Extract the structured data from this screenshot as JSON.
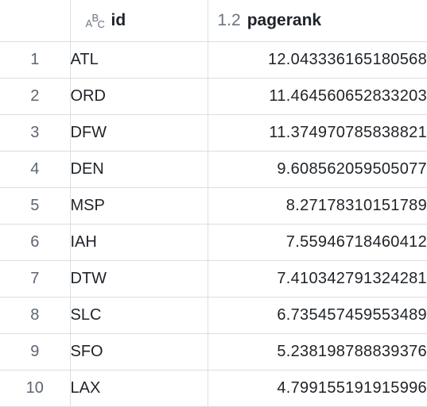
{
  "columns": {
    "index_header": "",
    "id": {
      "type_icon": "string-type-icon",
      "type_label": "ABC",
      "name": "id"
    },
    "pagerank": {
      "type_icon": "number-type-icon",
      "type_label": "1.2",
      "name": "pagerank"
    }
  },
  "rows": [
    {
      "index": "1",
      "id": "ATL",
      "pagerank": "12.043336165180568"
    },
    {
      "index": "2",
      "id": "ORD",
      "pagerank": "11.464560652833203"
    },
    {
      "index": "3",
      "id": "DFW",
      "pagerank": "11.374970785838821"
    },
    {
      "index": "4",
      "id": "DEN",
      "pagerank": "9.608562059505077"
    },
    {
      "index": "5",
      "id": "MSP",
      "pagerank": "8.27178310151789"
    },
    {
      "index": "6",
      "id": "IAH",
      "pagerank": "7.55946718460412"
    },
    {
      "index": "7",
      "id": "DTW",
      "pagerank": "7.410342791324281"
    },
    {
      "index": "8",
      "id": "SLC",
      "pagerank": "6.735457459553489"
    },
    {
      "index": "9",
      "id": "SFO",
      "pagerank": "5.238198788839376"
    },
    {
      "index": "10",
      "id": "LAX",
      "pagerank": "4.799155191915996"
    }
  ]
}
